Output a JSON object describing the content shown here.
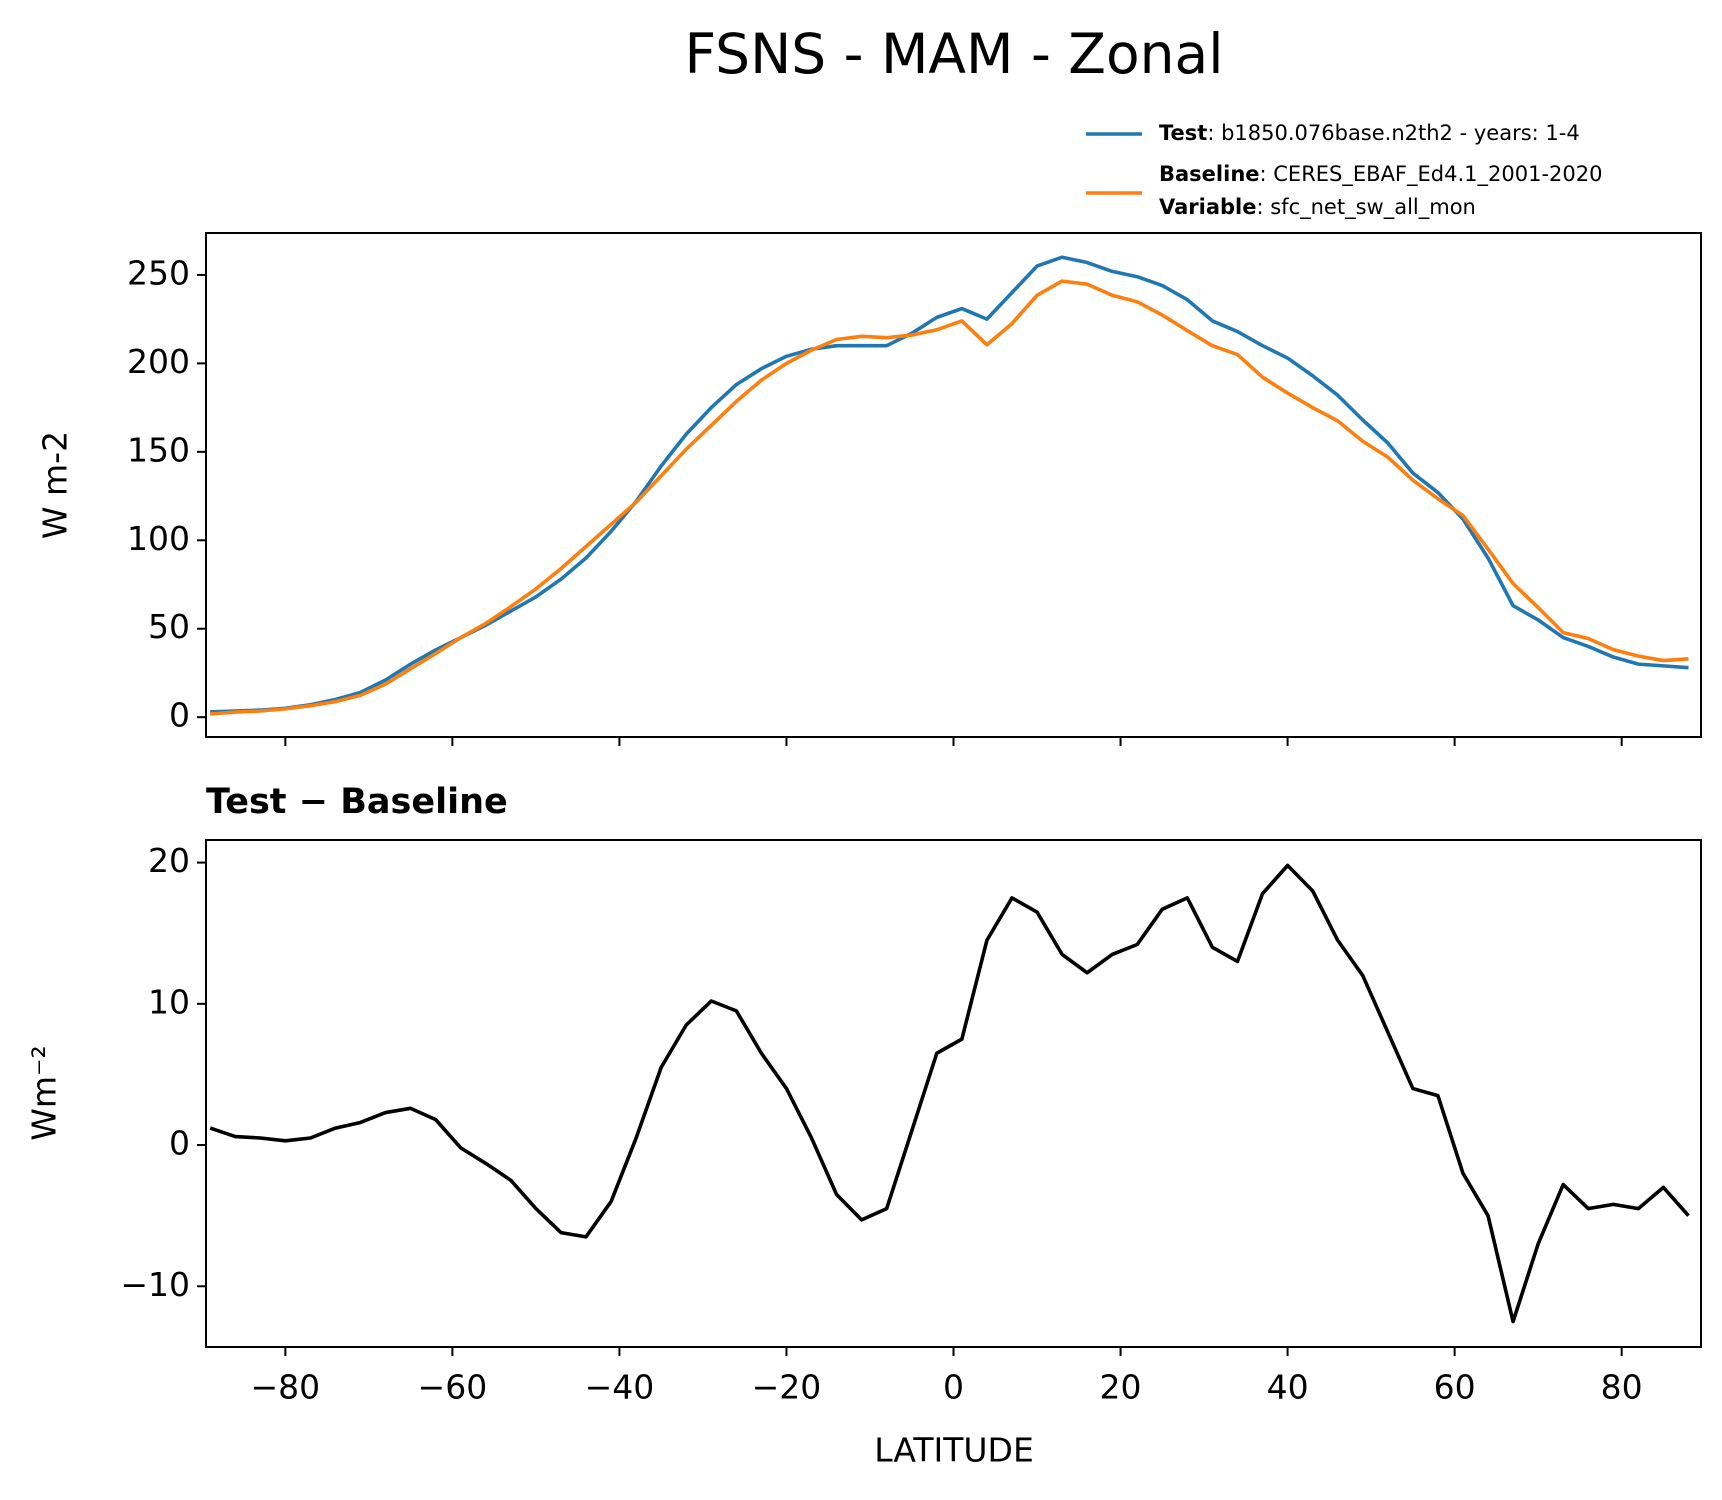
{
  "chart_data": [
    {
      "type": "line",
      "title": "FSNS - MAM - Zonal",
      "ylabel": "W m-2",
      "x": [
        -89,
        -86,
        -83,
        -80,
        -77,
        -74,
        -71,
        -68,
        -65,
        -62,
        -59,
        -56,
        -53,
        -50,
        -47,
        -44,
        -41,
        -38,
        -35,
        -32,
        -29,
        -26,
        -23,
        -20,
        -17,
        -14,
        -11,
        -8,
        -5,
        -2,
        1,
        4,
        7,
        10,
        13,
        16,
        19,
        22,
        25,
        28,
        31,
        34,
        37,
        40,
        43,
        46,
        49,
        52,
        55,
        58,
        61,
        64,
        67,
        70,
        73,
        76,
        79,
        82,
        85,
        88
      ],
      "series": [
        {
          "name": "Test",
          "detail": ": b1850.076base.n2th2 - years: 1-4",
          "color": "#1f77b4",
          "values": [
            3,
            3.5,
            4,
            5,
            7,
            10,
            14,
            21,
            30,
            38,
            45,
            52,
            60,
            68,
            78,
            90,
            105,
            122,
            142,
            160,
            175,
            188,
            197,
            204,
            208,
            210,
            210,
            210,
            217,
            226,
            231,
            225,
            240,
            255,
            260,
            257,
            252,
            249,
            244,
            236,
            224,
            218,
            210,
            203,
            193,
            182,
            168,
            155,
            138,
            127,
            112,
            90,
            63,
            55,
            45,
            40,
            34,
            30,
            29,
            28
          ]
        },
        {
          "name": "Baseline",
          "detail": ": CERES_EBAF_Ed4.1_2001-2020",
          "color": "#ff7f0e",
          "values": [
            1.8,
            2.9,
            3.5,
            4.7,
            6.5,
            8.8,
            12.4,
            18.7,
            27.4,
            36,
            45,
            53,
            62.5,
            72.5,
            84,
            96.5,
            109,
            121.5,
            136.5,
            151.5,
            165,
            178.5,
            190.5,
            200,
            207.5,
            213.5,
            215.3,
            214.5,
            216,
            219,
            224,
            210.5,
            222.5,
            238.5,
            246.5,
            244.8,
            238.5,
            234.8,
            227.3,
            218.5,
            210,
            205,
            192.2,
            183.2,
            175,
            167.5,
            156,
            147,
            134,
            123.5,
            114,
            95,
            75.5,
            62,
            47.8,
            44.5,
            38.2,
            34.5,
            32,
            33
          ]
        }
      ],
      "legend_extra": {
        "name": "Variable",
        "detail": ": sfc_net_sw_all_mon"
      },
      "xlim": [
        -89.5,
        89.5
      ],
      "xticks": [
        -80,
        -60,
        -40,
        -20,
        0,
        20,
        40,
        60,
        80
      ],
      "ylim": [
        -11.2,
        273.7
      ],
      "yticks": [
        0,
        50,
        100,
        150,
        200,
        250
      ]
    },
    {
      "type": "line",
      "title": "Test − Baseline",
      "xlabel": "LATITUDE",
      "ylabel": "Wm⁻²",
      "x": [
        -89,
        -86,
        -83,
        -80,
        -77,
        -74,
        -71,
        -68,
        -65,
        -62,
        -59,
        -56,
        -53,
        -50,
        -47,
        -44,
        -41,
        -38,
        -35,
        -32,
        -29,
        -26,
        -23,
        -20,
        -17,
        -14,
        -11,
        -8,
        -5,
        -2,
        1,
        4,
        7,
        10,
        13,
        16,
        19,
        22,
        25,
        28,
        31,
        34,
        37,
        40,
        43,
        46,
        49,
        52,
        55,
        58,
        61,
        64,
        67,
        70,
        73,
        76,
        79,
        82,
        85,
        88
      ],
      "series": [
        {
          "color": "#000000",
          "values": [
            1.2,
            0.6,
            0.5,
            0.3,
            0.5,
            1.2,
            1.6,
            2.3,
            2.6,
            1.8,
            -0.2,
            -1.3,
            -2.5,
            -4.5,
            -6.2,
            -6.5,
            -4.0,
            0.5,
            5.5,
            8.5,
            10.2,
            9.5,
            6.5,
            4.0,
            0.5,
            -3.5,
            -5.3,
            -4.5,
            1.0,
            6.5,
            7.5,
            14.5,
            17.5,
            16.5,
            13.5,
            12.2,
            13.5,
            14.2,
            16.7,
            17.5,
            14.0,
            13.0,
            17.8,
            19.8,
            18.0,
            14.5,
            12.0,
            8.0,
            4.0,
            3.5,
            -2.0,
            -5.0,
            -12.5,
            -7.0,
            -2.8,
            -4.5,
            -4.2,
            -4.5,
            -3.0,
            -5.0
          ]
        }
      ],
      "xlim": [
        -89.5,
        89.5
      ],
      "xticks": [
        {
          "value": -80,
          "label": "−80"
        },
        {
          "value": -60,
          "label": "−60"
        },
        {
          "value": -40,
          "label": "−40"
        },
        {
          "value": -20,
          "label": "−20"
        },
        0,
        20,
        40,
        60,
        80
      ],
      "ylim": [
        -14.3,
        21.6
      ],
      "yticks": [
        {
          "value": -10,
          "label": "−10"
        },
        0,
        10,
        20
      ]
    }
  ]
}
